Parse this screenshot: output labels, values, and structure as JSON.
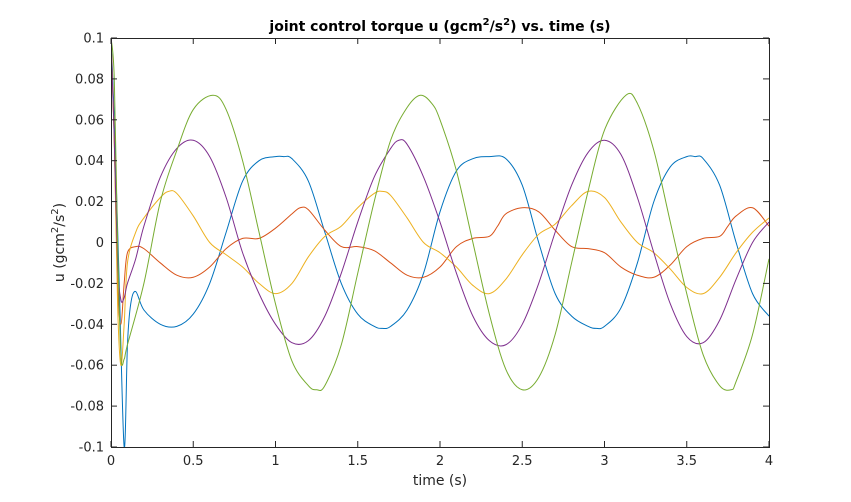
{
  "chart_data": {
    "type": "line",
    "title": {
      "prefix": "joint control torque u (gcm",
      "sup1": "2",
      "mid": "/s",
      "sup2": "2",
      "suffix": ") vs. time (s)"
    },
    "xlabel": "time (s)",
    "ylabel": {
      "prefix": "u (gcm",
      "sup1": "2",
      "mid": "/s",
      "sup2": "2",
      "suffix": ")"
    },
    "xlim": [
      0,
      4
    ],
    "ylim": [
      -0.1,
      0.1
    ],
    "xticks": [
      0,
      0.5,
      1,
      1.5,
      2,
      2.5,
      3,
      3.5,
      4
    ],
    "xtick_labels": [
      "0",
      "0.5",
      "1",
      "1.5",
      "2",
      "2.5",
      "3",
      "3.5",
      "4"
    ],
    "yticks": [
      -0.1,
      -0.08,
      -0.06,
      -0.04,
      -0.02,
      0,
      0.02,
      0.04,
      0.06,
      0.08,
      0.1
    ],
    "ytick_labels": [
      "-0.1",
      "-0.08",
      "-0.06",
      "-0.04",
      "-0.02",
      "0",
      "0.02",
      "0.04",
      "0.06",
      "0.08",
      "0.1"
    ],
    "grid": false,
    "legend": "none",
    "series": [
      {
        "color": "#0072BD",
        "x": [
          0,
          0.02,
          0.05,
          0.08,
          0.1,
          0.12,
          0.15,
          0.2,
          0.3,
          0.4,
          0.5,
          0.6,
          0.7,
          0.8,
          0.9,
          1.0,
          1.05,
          1.1,
          1.2,
          1.3,
          1.4,
          1.5,
          1.6,
          1.65,
          1.7,
          1.8,
          1.9,
          2.0,
          2.1,
          2.2,
          2.3,
          2.4,
          2.5,
          2.6,
          2.7,
          2.8,
          2.9,
          2.95,
          3.0,
          3.1,
          3.2,
          3.3,
          3.4,
          3.5,
          3.55,
          3.6,
          3.7,
          3.8,
          3.9,
          4.0
        ],
        "y": [
          0.1,
          0.06,
          -0.02,
          -0.1,
          -0.05,
          -0.03,
          -0.024,
          -0.033,
          -0.04,
          -0.041,
          -0.035,
          -0.02,
          0.005,
          0.03,
          0.04,
          0.042,
          0.042,
          0.041,
          0.03,
          0.005,
          -0.02,
          -0.035,
          -0.041,
          -0.042,
          -0.041,
          -0.033,
          -0.015,
          0.015,
          0.035,
          0.041,
          0.042,
          0.041,
          0.028,
          0.0,
          -0.025,
          -0.036,
          -0.041,
          -0.042,
          -0.041,
          -0.032,
          -0.01,
          0.02,
          0.037,
          0.042,
          0.042,
          0.041,
          0.028,
          0.0,
          -0.025,
          -0.036
        ]
      },
      {
        "color": "#D95319",
        "x": [
          0,
          0.02,
          0.04,
          0.06,
          0.08,
          0.1,
          0.15,
          0.2,
          0.3,
          0.4,
          0.5,
          0.6,
          0.7,
          0.8,
          0.9,
          1.0,
          1.1,
          1.15,
          1.2,
          1.3,
          1.4,
          1.5,
          1.6,
          1.7,
          1.8,
          1.9,
          2.0,
          2.1,
          2.2,
          2.3,
          2.35,
          2.4,
          2.5,
          2.6,
          2.7,
          2.8,
          2.9,
          3.0,
          3.1,
          3.2,
          3.3,
          3.4,
          3.5,
          3.6,
          3.7,
          3.75,
          3.8,
          3.9,
          4.0
        ],
        "y": [
          0.1,
          0.05,
          -0.02,
          -0.04,
          -0.02,
          -0.005,
          -0.002,
          -0.003,
          -0.01,
          -0.016,
          -0.017,
          -0.012,
          -0.003,
          0.002,
          0.002,
          0.007,
          0.014,
          0.017,
          0.016,
          0.006,
          -0.002,
          -0.002,
          -0.004,
          -0.01,
          -0.016,
          -0.017,
          -0.012,
          -0.002,
          0.002,
          0.003,
          0.008,
          0.014,
          0.017,
          0.015,
          0.006,
          -0.002,
          -0.003,
          -0.005,
          -0.012,
          -0.016,
          -0.017,
          -0.011,
          -0.002,
          0.002,
          0.003,
          0.008,
          0.013,
          0.017,
          0.008
        ]
      },
      {
        "color": "#EDB120",
        "x": [
          0,
          0.02,
          0.04,
          0.06,
          0.08,
          0.1,
          0.15,
          0.2,
          0.3,
          0.35,
          0.4,
          0.5,
          0.6,
          0.7,
          0.8,
          0.9,
          1.0,
          1.1,
          1.2,
          1.3,
          1.4,
          1.5,
          1.6,
          1.65,
          1.7,
          1.8,
          1.9,
          2.0,
          2.1,
          2.2,
          2.3,
          2.4,
          2.5,
          2.6,
          2.7,
          2.8,
          2.9,
          3.0,
          3.1,
          3.2,
          3.3,
          3.4,
          3.5,
          3.6,
          3.7,
          3.8,
          3.9,
          4.0
        ],
        "y": [
          0.1,
          0.05,
          -0.03,
          -0.06,
          -0.04,
          -0.01,
          0.005,
          0.012,
          0.022,
          0.025,
          0.024,
          0.013,
          0.0,
          -0.006,
          -0.012,
          -0.02,
          -0.025,
          -0.02,
          -0.007,
          0.003,
          0.008,
          0.017,
          0.024,
          0.025,
          0.023,
          0.012,
          0.0,
          -0.005,
          -0.012,
          -0.021,
          -0.025,
          -0.018,
          -0.006,
          0.004,
          0.009,
          0.018,
          0.025,
          0.022,
          0.01,
          0.0,
          -0.005,
          -0.013,
          -0.022,
          -0.025,
          -0.017,
          -0.005,
          0.005,
          0.012
        ]
      },
      {
        "color": "#7E2F8E",
        "x": [
          0,
          0.02,
          0.04,
          0.06,
          0.08,
          0.1,
          0.15,
          0.2,
          0.3,
          0.4,
          0.5,
          0.6,
          0.7,
          0.8,
          0.9,
          1.0,
          1.1,
          1.2,
          1.3,
          1.4,
          1.5,
          1.6,
          1.7,
          1.75,
          1.8,
          1.9,
          2.0,
          2.1,
          2.2,
          2.3,
          2.4,
          2.5,
          2.6,
          2.7,
          2.8,
          2.9,
          3.0,
          3.1,
          3.2,
          3.3,
          3.4,
          3.5,
          3.6,
          3.7,
          3.8,
          3.9,
          4.0
        ],
        "y": [
          0.1,
          0.05,
          -0.01,
          -0.028,
          -0.027,
          -0.02,
          -0.008,
          0.008,
          0.032,
          0.046,
          0.05,
          0.042,
          0.022,
          -0.005,
          -0.025,
          -0.04,
          -0.049,
          -0.048,
          -0.036,
          -0.015,
          0.01,
          0.032,
          0.046,
          0.05,
          0.048,
          0.032,
          0.01,
          -0.015,
          -0.036,
          -0.048,
          -0.05,
          -0.04,
          -0.02,
          0.005,
          0.028,
          0.044,
          0.05,
          0.043,
          0.022,
          -0.005,
          -0.03,
          -0.046,
          -0.049,
          -0.038,
          -0.018,
          0.0,
          0.01
        ]
      },
      {
        "color": "#77AC30",
        "x": [
          0,
          0.02,
          0.04,
          0.06,
          0.08,
          0.1,
          0.2,
          0.3,
          0.4,
          0.5,
          0.62,
          0.7,
          0.8,
          0.9,
          1.0,
          1.1,
          1.2,
          1.25,
          1.3,
          1.4,
          1.5,
          1.6,
          1.7,
          1.8,
          1.88,
          1.95,
          2.0,
          2.1,
          2.2,
          2.3,
          2.4,
          2.5,
          2.6,
          2.7,
          2.8,
          2.9,
          3.0,
          3.13,
          3.2,
          3.3,
          3.4,
          3.5,
          3.6,
          3.7,
          3.77,
          3.8,
          3.9,
          4.0
        ],
        "y": [
          0.1,
          0.08,
          0.0,
          -0.055,
          -0.057,
          -0.05,
          -0.02,
          0.02,
          0.045,
          0.065,
          0.072,
          0.065,
          0.04,
          0.005,
          -0.03,
          -0.058,
          -0.07,
          -0.072,
          -0.07,
          -0.05,
          -0.015,
          0.02,
          0.05,
          0.066,
          0.072,
          0.068,
          0.06,
          0.035,
          0.0,
          -0.035,
          -0.062,
          -0.072,
          -0.066,
          -0.045,
          -0.01,
          0.025,
          0.055,
          0.072,
          0.068,
          0.045,
          0.01,
          -0.025,
          -0.055,
          -0.07,
          -0.072,
          -0.068,
          -0.045,
          -0.008
        ]
      }
    ]
  }
}
